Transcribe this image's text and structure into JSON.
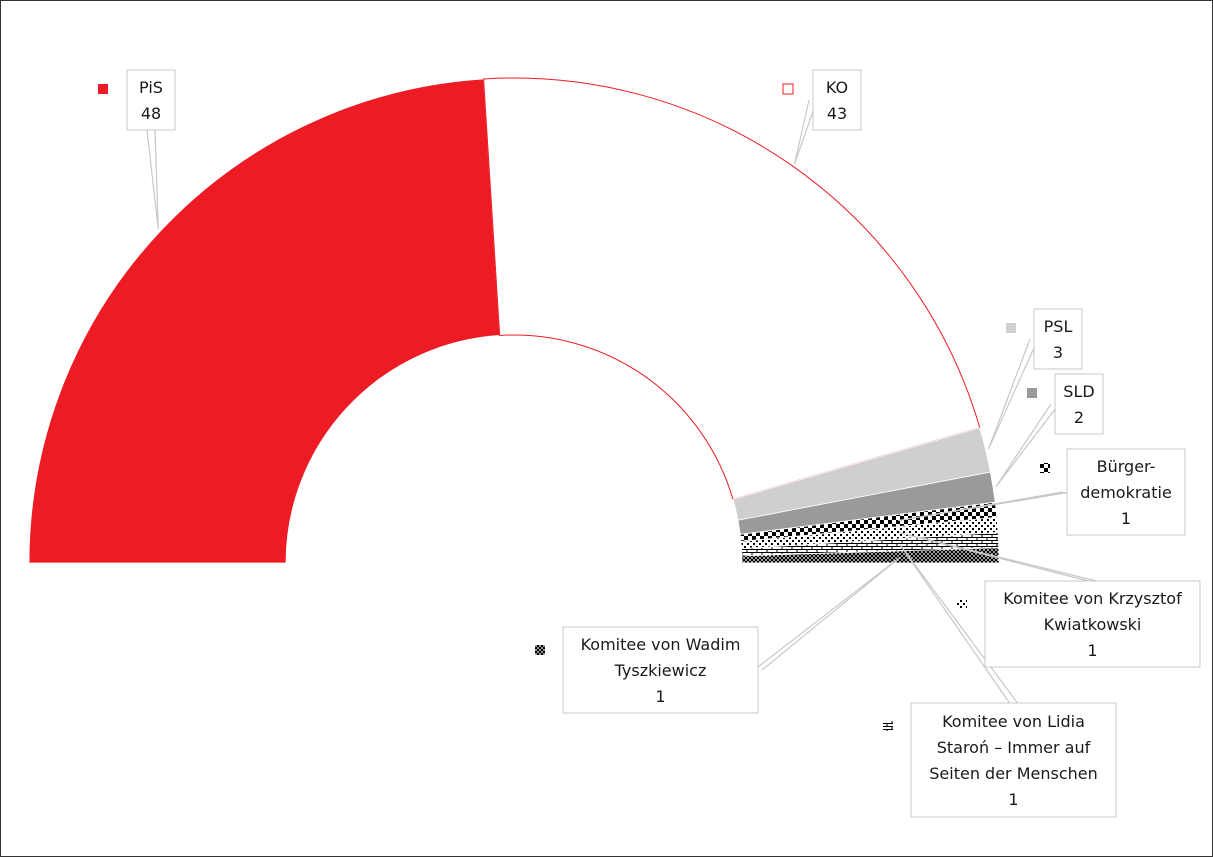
{
  "chart_data": {
    "type": "pie",
    "variant": "half-donut",
    "legend_placement": "callouts",
    "total": 100,
    "slices": [
      {
        "name": "PiS",
        "label_lines": [
          "PiS",
          "48"
        ],
        "value": 48,
        "color": "#ed1c24",
        "pattern": "solid"
      },
      {
        "name": "KO",
        "label_lines": [
          "KO",
          "43"
        ],
        "value": 43,
        "color": "#ffffff",
        "stroke": "#ed1c24",
        "pattern": "solid"
      },
      {
        "name": "PSL",
        "label_lines": [
          "PSL",
          "3"
        ],
        "value": 3,
        "color": "#cfcfcf",
        "pattern": "solid"
      },
      {
        "name": "SLD",
        "label_lines": [
          "SLD",
          "2"
        ],
        "value": 2,
        "color": "#9a9a9a",
        "pattern": "solid"
      },
      {
        "name": "Bürger-demokratie",
        "label_lines": [
          "Bürger-",
          "demokratie",
          "1"
        ],
        "value": 1,
        "color": "#000000",
        "pattern": "checker"
      },
      {
        "name": "Komitee von Krzysztof Kwiatkowski",
        "label_lines": [
          "Komitee von Krzysztof",
          "Kwiatkowski",
          "1"
        ],
        "value": 1,
        "color": "#000000",
        "pattern": "dots"
      },
      {
        "name": "Komitee von Lidia Staroń – Immer auf Seiten der Menschen",
        "label_lines": [
          "Komitee von Lidia",
          "Staroń – Immer auf",
          "Seiten der Menschen",
          "1"
        ],
        "value": 1,
        "color": "#000000",
        "pattern": "brick"
      },
      {
        "name": "Komitee von Wadim Tyszkiewicz",
        "label_lines": [
          "Komitee von Wadim",
          "Tyszkiewicz",
          "1"
        ],
        "value": 1,
        "color": "#000000",
        "pattern": "weave"
      }
    ]
  }
}
